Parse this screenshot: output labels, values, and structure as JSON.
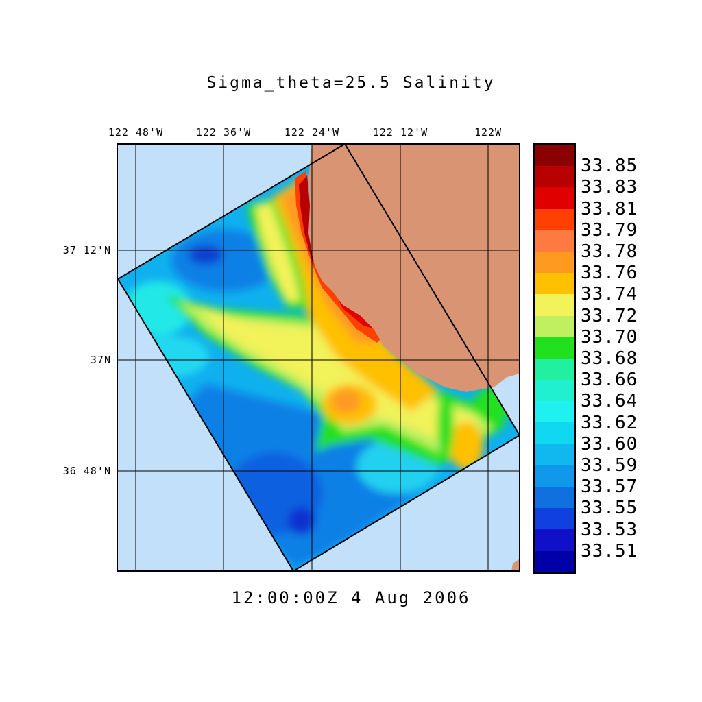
{
  "title": "Sigma_theta=25.5 Salinity",
  "timestamp": "12:00:00Z   4 Aug 2006",
  "lon_labels": [
    "122 48'W",
    "122 36'W",
    "122 24'W",
    "122 12'W",
    "122W"
  ],
  "lat_labels": [
    "37 12'N",
    "37N",
    "36 48'N"
  ],
  "colors": {
    "ocean": "#c2e0fa",
    "land": "#d99473"
  },
  "colorbar": {
    "labels": [
      "33.85",
      "33.83",
      "33.81",
      "33.79",
      "33.78",
      "33.76",
      "33.74",
      "33.72",
      "33.70",
      "33.68",
      "33.66",
      "33.64",
      "33.62",
      "33.60",
      "33.59",
      "33.57",
      "33.55",
      "33.53",
      "33.51"
    ],
    "colors": [
      "#8b0000",
      "#b80000",
      "#e00000",
      "#ff4000",
      "#ff7a40",
      "#ff9a20",
      "#ffc000",
      "#f2f25a",
      "#c0f060",
      "#20e020",
      "#20f0a0",
      "#20f0d0",
      "#20f0f0",
      "#10d8f0",
      "#10b8ef",
      "#1098ea",
      "#1070e0",
      "#1040e0",
      "#1010c8",
      "#0000a8"
    ]
  }
}
